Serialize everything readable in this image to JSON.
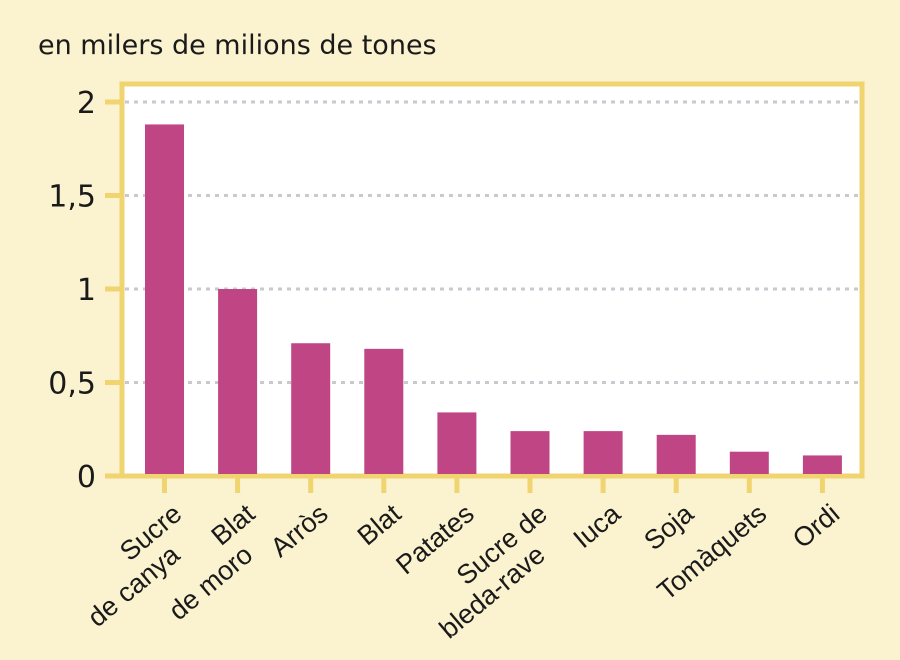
{
  "chart_data": {
    "type": "bar",
    "ylabel": "en milers de milions de tones",
    "categories": [
      [
        "Sucre",
        "de canya"
      ],
      [
        "Blat",
        "de moro"
      ],
      [
        "Arròs"
      ],
      [
        "Blat"
      ],
      [
        "Patates"
      ],
      [
        "Sucre de",
        "bleda-rave"
      ],
      [
        "Iuca"
      ],
      [
        "Soja"
      ],
      [
        "Tomàquets"
      ],
      [
        "Ordi"
      ]
    ],
    "values": [
      1.88,
      1.0,
      0.71,
      0.68,
      0.34,
      0.24,
      0.24,
      0.22,
      0.13,
      0.11
    ],
    "yticks": [
      {
        "v": 0,
        "label": "0"
      },
      {
        "v": 0.5,
        "label": "0,5"
      },
      {
        "v": 1,
        "label": "1"
      },
      {
        "v": 1.5,
        "label": "1,5"
      },
      {
        "v": 2,
        "label": "2"
      }
    ],
    "ylim": [
      0,
      2.03
    ],
    "grid": true,
    "colors": {
      "bar": "#c04585",
      "frame": "#f0d470",
      "grid": "#c9c9d0",
      "background": "#fbf2cf"
    }
  }
}
